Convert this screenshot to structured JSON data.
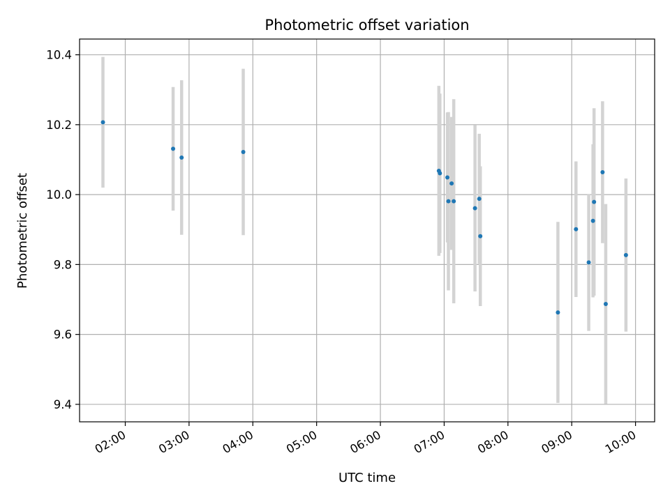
{
  "chart_data": {
    "type": "scatter",
    "title": "Photometric offset variation",
    "xlabel": "UTC time",
    "ylabel": "Photometric offset",
    "x_axis_format": "HH:MM",
    "x_ticks": [
      "02:00",
      "03:00",
      "04:00",
      "05:00",
      "06:00",
      "07:00",
      "08:00",
      "09:00",
      "10:00"
    ],
    "y_ticks": [
      "9.4",
      "9.6",
      "9.8",
      "10.0",
      "10.2",
      "10.4"
    ],
    "xlim": [
      "01:17",
      "10:18"
    ],
    "ylim": [
      9.35,
      10.445
    ],
    "grid": true,
    "colors": {
      "marker": "#1f77b4",
      "errorbar": "#d3d3d3"
    },
    "series": [
      {
        "points": [
          {
            "x": "01:39",
            "y": 10.207,
            "err": 0.187
          },
          {
            "x": "02:45",
            "y": 10.131,
            "err": 0.177
          },
          {
            "x": "02:53",
            "y": 10.106,
            "err": 0.221
          },
          {
            "x": "03:51",
            "y": 10.122,
            "err": 0.238
          },
          {
            "x": "06:55",
            "y": 10.068,
            "err": 0.243
          },
          {
            "x": "06:56",
            "y": 10.061,
            "err": 0.228
          },
          {
            "x": "07:03",
            "y": 10.049,
            "err": 0.186
          },
          {
            "x": "07:04",
            "y": 9.981,
            "err": 0.255
          },
          {
            "x": "07:07",
            "y": 10.032,
            "err": 0.19
          },
          {
            "x": "07:09",
            "y": 9.981,
            "err": 0.292
          },
          {
            "x": "07:29",
            "y": 9.961,
            "err": 0.238
          },
          {
            "x": "07:33",
            "y": 9.988,
            "err": 0.186
          },
          {
            "x": "07:34",
            "y": 9.881,
            "err": 0.2
          },
          {
            "x": "08:47",
            "y": 9.663,
            "err": 0.259
          },
          {
            "x": "09:04",
            "y": 9.901,
            "err": 0.194
          },
          {
            "x": "09:16",
            "y": 9.806,
            "err": 0.196
          },
          {
            "x": "09:20",
            "y": 9.925,
            "err": 0.219
          },
          {
            "x": "09:21",
            "y": 9.979,
            "err": 0.268
          },
          {
            "x": "09:29",
            "y": 10.064,
            "err": 0.203
          },
          {
            "x": "09:32",
            "y": 9.687,
            "err": 0.286
          },
          {
            "x": "09:51",
            "y": 9.827,
            "err": 0.219
          }
        ]
      }
    ]
  }
}
